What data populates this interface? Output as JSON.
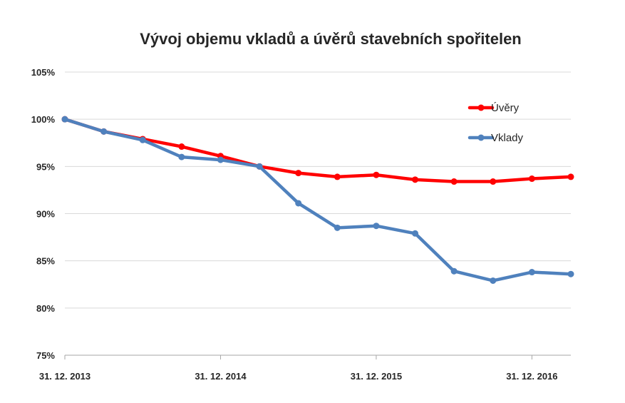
{
  "chart_data": {
    "type": "line",
    "title": "Vývoj objemu vkladů a úvěrů stavebních spořitelen",
    "xlabel": "",
    "ylabel": "",
    "ylim": [
      75,
      105
    ],
    "yticks": [
      75,
      80,
      85,
      90,
      95,
      100,
      105
    ],
    "ytick_labels": [
      "75%",
      "80%",
      "85%",
      "90%",
      "95%",
      "100%",
      "105%"
    ],
    "x_tick_labels": [
      "31. 12. 2013",
      "31. 12. 2014",
      "31. 12. 2015",
      "31. 12. 2016"
    ],
    "x_tick_indices": [
      0,
      4,
      8,
      12
    ],
    "grid": true,
    "legend_position": "top-right",
    "series": [
      {
        "name": "Úvěry",
        "color": "#ff0000",
        "values": [
          100,
          98.7,
          97.9,
          97.1,
          96.1,
          95.0,
          94.3,
          93.9,
          94.1,
          93.6,
          93.4,
          93.4,
          93.7,
          93.9
        ]
      },
      {
        "name": "Vklady",
        "color": "#4f81bd",
        "values": [
          100,
          98.7,
          97.8,
          96.0,
          95.7,
          95.0,
          91.1,
          88.5,
          88.7,
          87.9,
          83.9,
          82.9,
          83.8,
          83.6
        ]
      }
    ]
  }
}
